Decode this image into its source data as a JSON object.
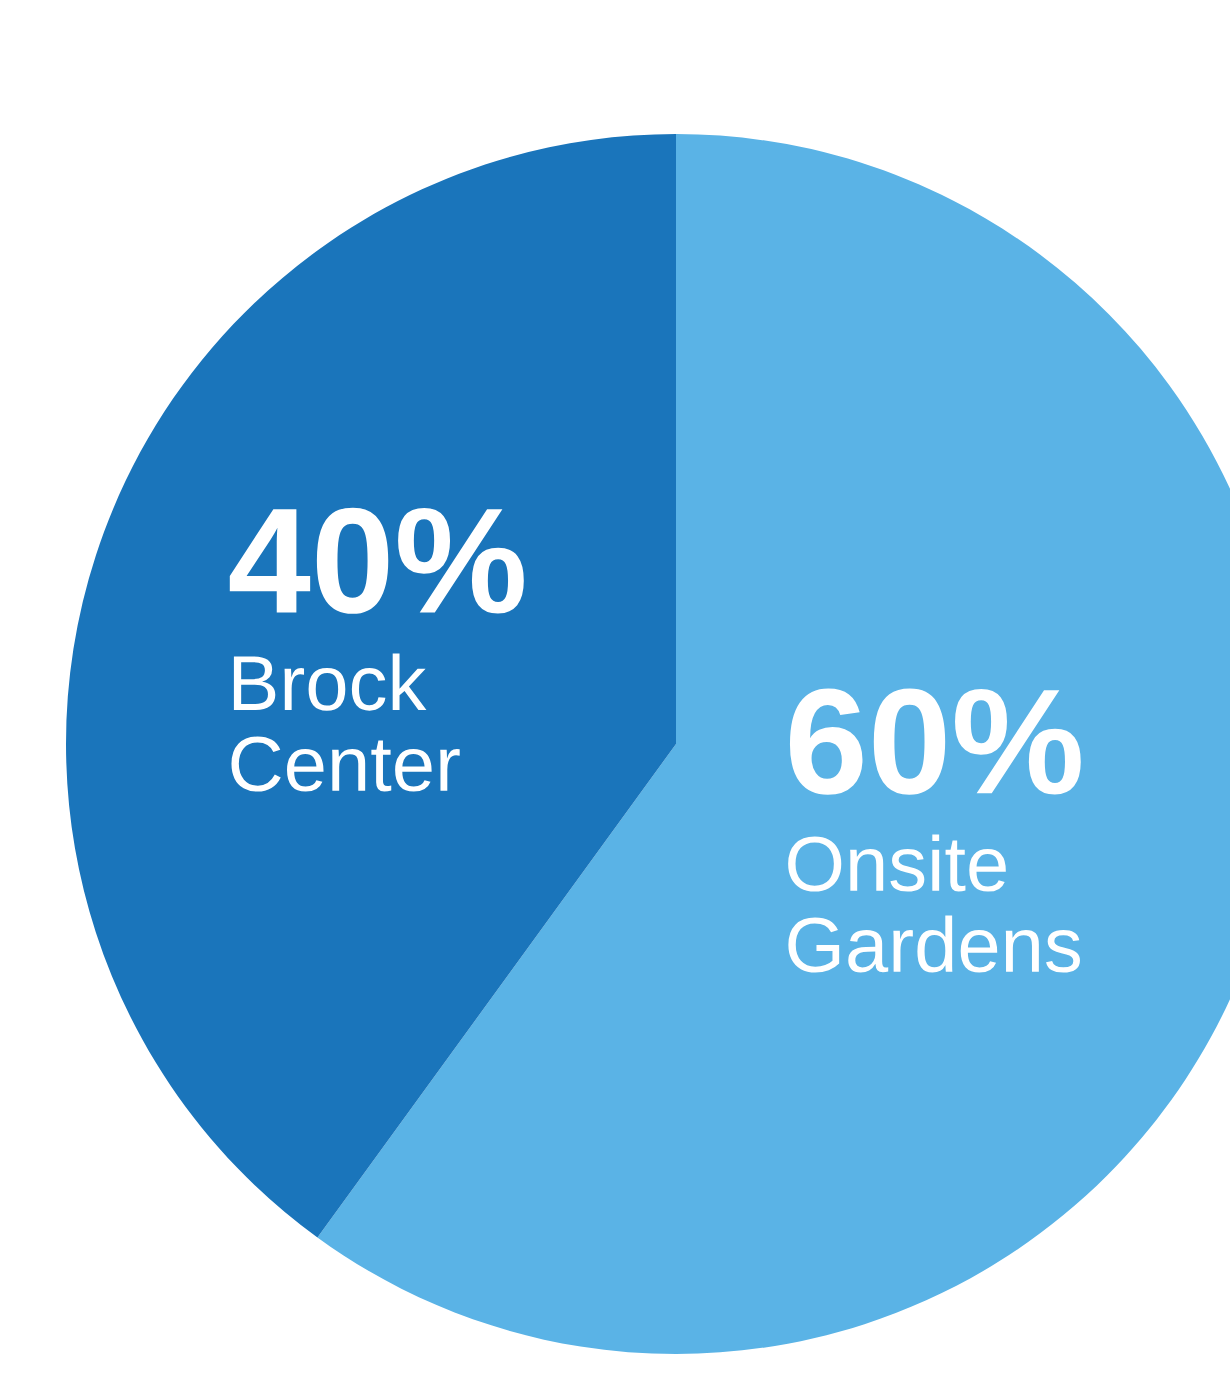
{
  "chart_data": {
    "type": "pie",
    "categories": [
      "Onsite Gardens",
      "Brock Center"
    ],
    "values": [
      60,
      40
    ],
    "colors": [
      "#5ab3e6",
      "#1a75bb"
    ],
    "value_labels": [
      "60%",
      "40%"
    ]
  }
}
